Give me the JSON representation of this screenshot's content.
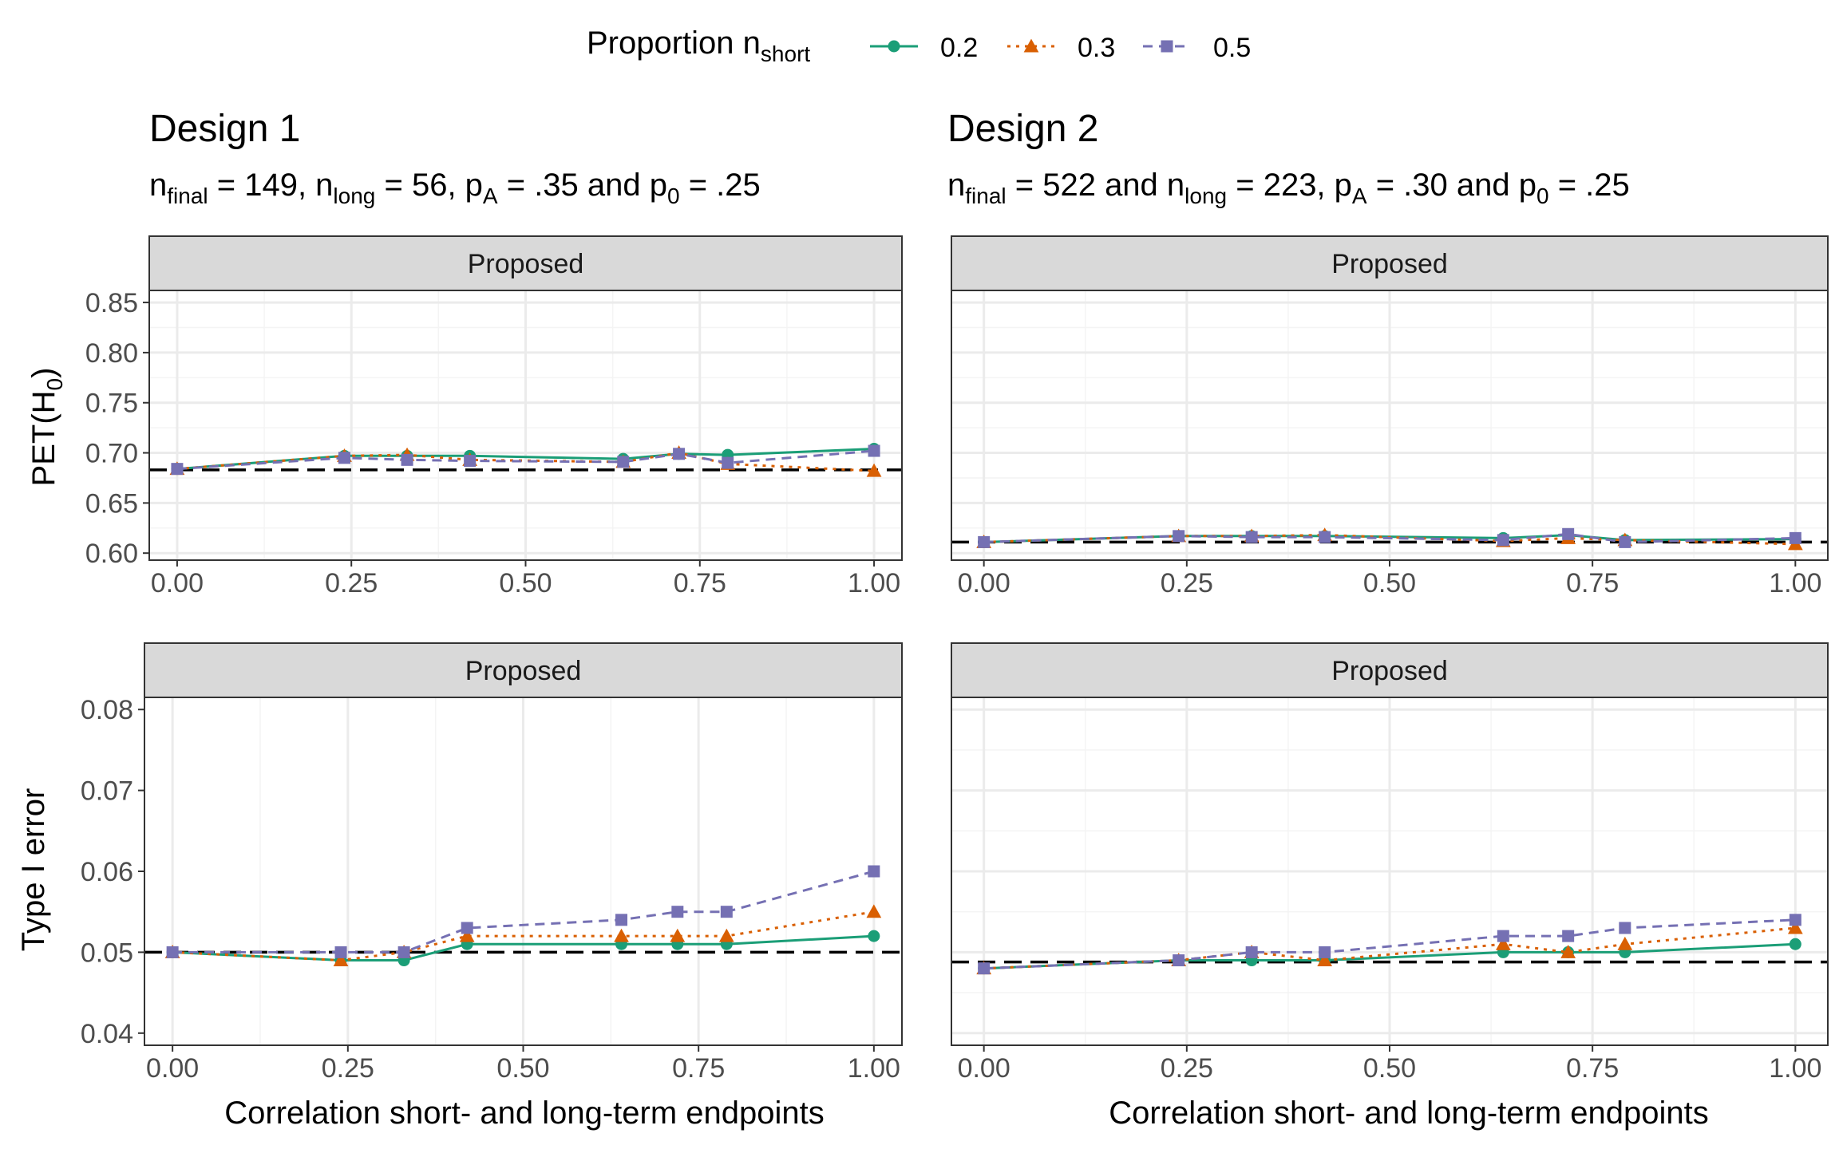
{
  "legend": {
    "title": "Proportion n",
    "title_sub": "short",
    "items": [
      {
        "label": "0.2",
        "color": "#1b9e77",
        "marker": "circle",
        "dash": "solid"
      },
      {
        "label": "0.3",
        "color": "#d95f02",
        "marker": "triangle",
        "dash": "dotted"
      },
      {
        "label": "0.5",
        "color": "#7570b3",
        "marker": "square",
        "dash": "dashed"
      }
    ]
  },
  "designs": [
    {
      "title": "Design 1",
      "subtitle": {
        "p1": "n",
        "s1": "final",
        "p2": " = 149, n",
        "s2": "long",
        "p3": " = 56, p",
        "s3": "A",
        "p4": " = .35 and p",
        "s4": "0",
        "p5": " = .25"
      }
    },
    {
      "title": "Design 2",
      "subtitle": {
        "p1": "n",
        "s1": "final",
        "p2": " = 522 and n",
        "s2": "long",
        "p3": " = 223, p",
        "s3": "A",
        "p4": " = .30 and p",
        "s4": "0",
        "p5": " = .25"
      }
    }
  ],
  "strip_label": "Proposed",
  "ylabels": {
    "top": {
      "main": "PET(H",
      "sub": "0",
      "end": ")"
    },
    "bottom": "Type I error"
  },
  "xlabel": "Correlation short- and long-term endpoints",
  "colors": {
    "panel_border": "#333333",
    "strip_fill": "#d9d9d9",
    "grid_major": "#ebebeb",
    "grid_minor": "#f4f4f4",
    "reference": "#000000"
  },
  "chart_data": [
    {
      "type": "line",
      "panel": "Design 1 / PET(H0)",
      "xlim": [
        -0.04,
        1.04
      ],
      "ylim": [
        0.593,
        0.862
      ],
      "xticks": [
        "0.00",
        "0.25",
        "0.50",
        "0.75",
        "1.00"
      ],
      "yticks": [
        "0.60",
        "0.65",
        "0.70",
        "0.75",
        "0.80",
        "0.85"
      ],
      "reference_y": 0.683,
      "x": [
        0.0,
        0.24,
        0.33,
        0.42,
        0.64,
        0.72,
        0.79,
        1.0
      ],
      "series": [
        {
          "name": "0.2",
          "values": [
            0.684,
            0.697,
            0.697,
            0.697,
            0.694,
            0.699,
            0.698,
            0.704
          ]
        },
        {
          "name": "0.3",
          "values": [
            0.684,
            0.697,
            0.698,
            0.693,
            0.691,
            0.7,
            0.689,
            0.682
          ]
        },
        {
          "name": "0.5",
          "values": [
            0.684,
            0.695,
            0.693,
            0.692,
            0.691,
            0.699,
            0.69,
            0.702
          ]
        }
      ]
    },
    {
      "type": "line",
      "panel": "Design 2 / PET(H0)",
      "xlim": [
        -0.04,
        1.04
      ],
      "ylim": [
        0.593,
        0.862
      ],
      "xticks": [
        "0.00",
        "0.25",
        "0.50",
        "0.75",
        "1.00"
      ],
      "yticks": [],
      "reference_y": 0.611,
      "x": [
        0.0,
        0.24,
        0.33,
        0.42,
        0.64,
        0.72,
        0.79,
        1.0
      ],
      "series": [
        {
          "name": "0.2",
          "values": [
            0.611,
            0.617,
            0.617,
            0.617,
            0.615,
            0.618,
            0.613,
            0.614
          ]
        },
        {
          "name": "0.3",
          "values": [
            0.611,
            0.617,
            0.617,
            0.618,
            0.612,
            0.615,
            0.613,
            0.609
          ]
        },
        {
          "name": "0.5",
          "values": [
            0.611,
            0.617,
            0.616,
            0.616,
            0.613,
            0.619,
            0.611,
            0.615
          ]
        }
      ]
    },
    {
      "type": "line",
      "panel": "Design 1 / Type I error",
      "xlim": [
        -0.04,
        1.04
      ],
      "ylim": [
        0.0385,
        0.0815
      ],
      "xticks": [
        "0.00",
        "0.25",
        "0.50",
        "0.75",
        "1.00"
      ],
      "yticks": [
        "0.04",
        "0.05",
        "0.06",
        "0.07",
        "0.08"
      ],
      "reference_y": 0.05,
      "x": [
        0.0,
        0.24,
        0.33,
        0.42,
        0.64,
        0.72,
        0.79,
        1.0
      ],
      "series": [
        {
          "name": "0.2",
          "values": [
            0.05,
            0.049,
            0.049,
            0.051,
            0.051,
            0.051,
            0.051,
            0.052
          ]
        },
        {
          "name": "0.3",
          "values": [
            0.05,
            0.049,
            0.05,
            0.052,
            0.052,
            0.052,
            0.052,
            0.055
          ]
        },
        {
          "name": "0.5",
          "values": [
            0.05,
            0.05,
            0.05,
            0.053,
            0.054,
            0.055,
            0.055,
            0.06
          ]
        }
      ]
    },
    {
      "type": "line",
      "panel": "Design 2 / Type I error",
      "xlim": [
        -0.04,
        1.04
      ],
      "ylim": [
        0.0385,
        0.0815
      ],
      "xticks": [
        "0.00",
        "0.25",
        "0.50",
        "0.75",
        "1.00"
      ],
      "yticks": [],
      "reference_y": 0.0488,
      "x": [
        0.0,
        0.24,
        0.33,
        0.42,
        0.64,
        0.72,
        0.79,
        1.0
      ],
      "series": [
        {
          "name": "0.2",
          "values": [
            0.048,
            0.049,
            0.049,
            0.049,
            0.05,
            0.05,
            0.05,
            0.051
          ]
        },
        {
          "name": "0.3",
          "values": [
            0.048,
            0.049,
            0.05,
            0.049,
            0.051,
            0.05,
            0.051,
            0.053
          ]
        },
        {
          "name": "0.5",
          "values": [
            0.048,
            0.049,
            0.05,
            0.05,
            0.052,
            0.052,
            0.053,
            0.054
          ]
        }
      ]
    }
  ]
}
